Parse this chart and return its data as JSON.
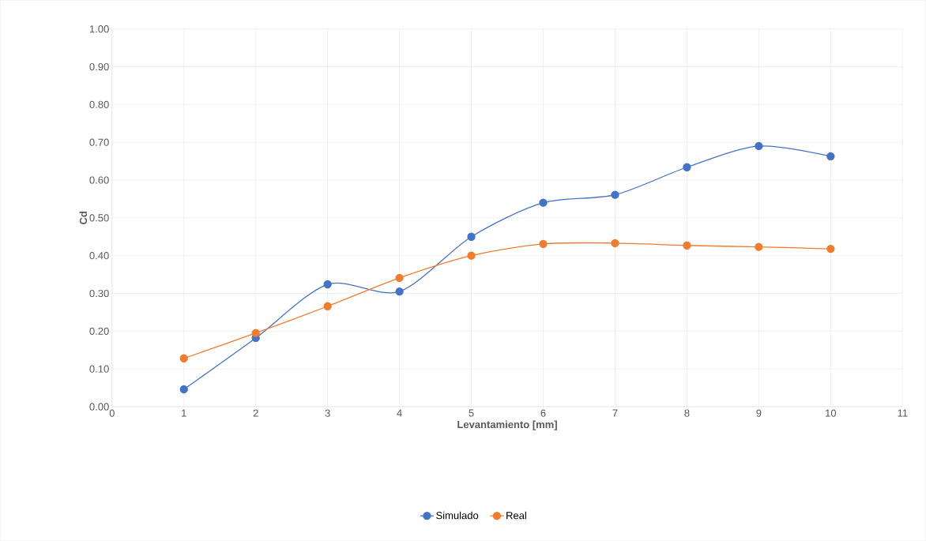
{
  "chart_data": {
    "type": "line",
    "xlabel": "Levantamiento [mm]",
    "ylabel": "Cd",
    "x": [
      1,
      2,
      3,
      4,
      5,
      6,
      7,
      8,
      9,
      10
    ],
    "series": [
      {
        "name": "Simulado",
        "color": "#4472c4",
        "values": [
          0.046,
          0.182,
          0.324,
          0.305,
          0.45,
          0.54,
          0.561,
          0.634,
          0.69,
          0.663
        ]
      },
      {
        "name": "Real",
        "color": "#ed7d31",
        "values": [
          0.128,
          0.195,
          0.266,
          0.341,
          0.4,
          0.431,
          0.433,
          0.427,
          0.423,
          0.418
        ]
      }
    ],
    "xlim": [
      0,
      11
    ],
    "xticks": [
      0,
      1,
      2,
      3,
      4,
      5,
      6,
      7,
      8,
      9,
      10,
      11
    ],
    "ylim": [
      0,
      1
    ],
    "yticks": [
      {
        "value": 0,
        "label": "0.00"
      },
      {
        "value": 0.1,
        "label": "0.10"
      },
      {
        "value": 0.2,
        "label": "0.20"
      },
      {
        "value": 0.3,
        "label": "0.30"
      },
      {
        "value": 0.4,
        "label": "0.40"
      },
      {
        "value": 0.5,
        "label": "0.50"
      },
      {
        "value": 0.6,
        "label": "0.60"
      },
      {
        "value": 0.7,
        "label": "0.70"
      },
      {
        "value": 0.8,
        "label": "0.80"
      },
      {
        "value": 0.9,
        "label": "0.90"
      },
      {
        "value": 1,
        "label": "1.00"
      }
    ],
    "grid": true,
    "legend": "bottom",
    "marker": "circle",
    "line_style": "solid"
  }
}
